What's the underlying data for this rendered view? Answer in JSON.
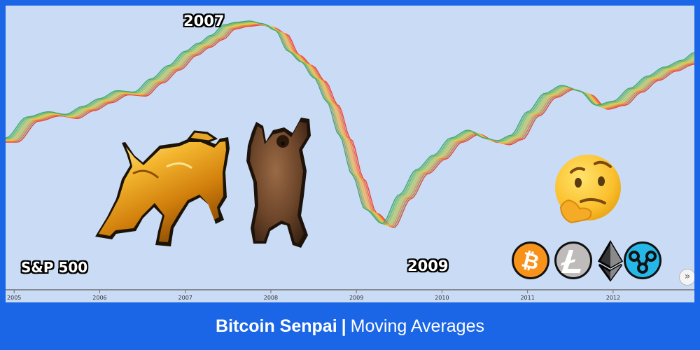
{
  "footer": {
    "brand": "Bitcoin Senpai",
    "separator": "|",
    "subtitle": "Moving Averages"
  },
  "annotations": {
    "peak_label": "2007",
    "trough_label": "2009",
    "index_label": "S&P 500"
  },
  "icons": [
    "bull-icon",
    "bear-icon",
    "thinking-face-icon",
    "bitcoin-icon",
    "litecoin-icon",
    "ethereum-icon",
    "ripple-icon"
  ],
  "colors": {
    "frame": "#1a66e6",
    "plot_background": "#cadbf5",
    "ribbon_fast": "#3fa873",
    "ribbon_mid": "#f2d24a",
    "ribbon_slow": "#e8433a",
    "gap_bull": "#66c7a0",
    "gap_bear": "#f08ca0",
    "bitcoin": "#f7931a",
    "litecoin": "#bfbbbb",
    "ethereum": "#3c3c3d",
    "ripple": "#23292f"
  },
  "chart_data": {
    "type": "line",
    "title": "",
    "xlabel": "",
    "ylabel": "",
    "x_ticks": [
      "2005",
      "2006",
      "2007",
      "2008",
      "2009",
      "2010",
      "2011",
      "2012"
    ],
    "x_range": [
      2004.9,
      2012.95
    ],
    "y_axis": "not shown",
    "grid": false,
    "legend": "none",
    "series_count": 8,
    "series_spread_index": [
      0,
      0.09,
      0.18,
      0.27,
      0.36,
      0.45,
      0.54,
      0.63
    ],
    "base_x": [
      2004.9,
      2005.15,
      2005.4,
      2005.6,
      2005.8,
      2006.0,
      2006.2,
      2006.4,
      2006.6,
      2006.8,
      2007.0,
      2007.15,
      2007.3,
      2007.45,
      2007.6,
      2007.75,
      2007.9,
      2008.05,
      2008.2,
      2008.35,
      2008.5,
      2008.65,
      2008.8,
      2008.95,
      2009.1,
      2009.3,
      2009.5,
      2009.7,
      2009.9,
      2010.1,
      2010.3,
      2010.5,
      2010.65,
      2010.8,
      2011.0,
      2011.2,
      2011.4,
      2011.6,
      2011.8,
      2012.0,
      2012.2,
      2012.4,
      2012.6,
      2012.8,
      2012.95
    ],
    "base_y": [
      0.1,
      0.26,
      0.3,
      0.28,
      0.34,
      0.4,
      0.46,
      0.45,
      0.55,
      0.65,
      0.76,
      0.82,
      0.88,
      0.96,
      0.98,
      0.99,
      0.97,
      0.92,
      0.76,
      0.68,
      0.56,
      0.38,
      0.12,
      -0.18,
      -0.44,
      -0.55,
      -0.33,
      -0.14,
      -0.03,
      0.1,
      0.16,
      0.1,
      0.08,
      0.12,
      0.3,
      0.44,
      0.5,
      0.46,
      0.35,
      0.38,
      0.48,
      0.57,
      0.64,
      0.69,
      0.75
    ]
  }
}
